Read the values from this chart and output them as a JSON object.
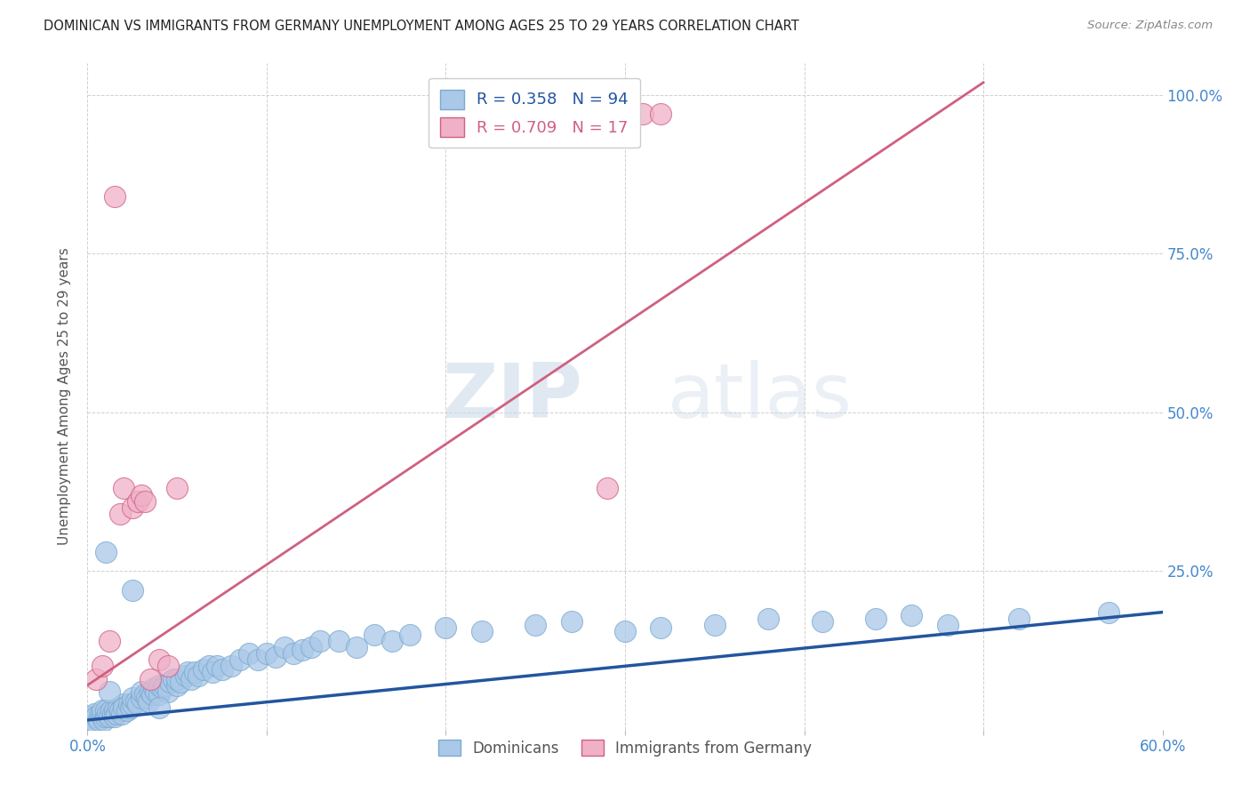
{
  "title": "DOMINICAN VS IMMIGRANTS FROM GERMANY UNEMPLOYMENT AMONG AGES 25 TO 29 YEARS CORRELATION CHART",
  "source": "Source: ZipAtlas.com",
  "ylabel": "Unemployment Among Ages 25 to 29 years",
  "x_ticks": [
    0.0,
    0.1,
    0.2,
    0.3,
    0.4,
    0.5,
    0.6
  ],
  "x_tick_labels": [
    "0.0%",
    "",
    "",
    "",
    "",
    "",
    "60.0%"
  ],
  "y_ticks": [
    0.0,
    0.25,
    0.5,
    0.75,
    1.0
  ],
  "y_tick_labels": [
    "",
    "25.0%",
    "50.0%",
    "75.0%",
    "100.0%"
  ],
  "blue_R": 0.358,
  "blue_N": 94,
  "pink_R": 0.709,
  "pink_N": 17,
  "blue_label": "Dominicans",
  "pink_label": "Immigrants from Germany",
  "watermark_zip": "ZIP",
  "watermark_atlas": "atlas",
  "background_color": "#ffffff",
  "blue_color": "#aac8e8",
  "blue_edge_color": "#7aaad0",
  "blue_line_color": "#2255a0",
  "pink_color": "#f0b0c8",
  "pink_edge_color": "#d06080",
  "pink_line_color": "#d06080",
  "blue_scatter_x": [
    0.002,
    0.003,
    0.004,
    0.005,
    0.005,
    0.006,
    0.007,
    0.008,
    0.008,
    0.009,
    0.01,
    0.01,
    0.011,
    0.012,
    0.013,
    0.014,
    0.015,
    0.015,
    0.016,
    0.017,
    0.018,
    0.019,
    0.02,
    0.02,
    0.022,
    0.023,
    0.024,
    0.025,
    0.025,
    0.027,
    0.028,
    0.03,
    0.03,
    0.032,
    0.033,
    0.034,
    0.035,
    0.036,
    0.037,
    0.038,
    0.04,
    0.04,
    0.042,
    0.043,
    0.045,
    0.046,
    0.048,
    0.05,
    0.05,
    0.052,
    0.055,
    0.056,
    0.058,
    0.06,
    0.062,
    0.065,
    0.068,
    0.07,
    0.072,
    0.075,
    0.08,
    0.085,
    0.09,
    0.095,
    0.1,
    0.105,
    0.11,
    0.115,
    0.12,
    0.125,
    0.13,
    0.14,
    0.15,
    0.16,
    0.17,
    0.18,
    0.2,
    0.22,
    0.25,
    0.27,
    0.3,
    0.32,
    0.35,
    0.38,
    0.41,
    0.44,
    0.46,
    0.48,
    0.52,
    0.57,
    0.01,
    0.012,
    0.025,
    0.04
  ],
  "blue_scatter_y": [
    0.02,
    0.015,
    0.025,
    0.01,
    0.02,
    0.015,
    0.025,
    0.02,
    0.03,
    0.015,
    0.02,
    0.03,
    0.025,
    0.02,
    0.03,
    0.025,
    0.03,
    0.02,
    0.025,
    0.035,
    0.03,
    0.025,
    0.04,
    0.035,
    0.03,
    0.04,
    0.035,
    0.04,
    0.05,
    0.045,
    0.04,
    0.05,
    0.06,
    0.055,
    0.05,
    0.045,
    0.06,
    0.055,
    0.065,
    0.06,
    0.055,
    0.07,
    0.065,
    0.07,
    0.06,
    0.075,
    0.08,
    0.07,
    0.08,
    0.075,
    0.085,
    0.09,
    0.08,
    0.09,
    0.085,
    0.095,
    0.1,
    0.09,
    0.1,
    0.095,
    0.1,
    0.11,
    0.12,
    0.11,
    0.12,
    0.115,
    0.13,
    0.12,
    0.125,
    0.13,
    0.14,
    0.14,
    0.13,
    0.15,
    0.14,
    0.15,
    0.16,
    0.155,
    0.165,
    0.17,
    0.155,
    0.16,
    0.165,
    0.175,
    0.17,
    0.175,
    0.18,
    0.165,
    0.175,
    0.185,
    0.28,
    0.06,
    0.22,
    0.035
  ],
  "pink_scatter_x": [
    0.005,
    0.008,
    0.012,
    0.015,
    0.018,
    0.02,
    0.025,
    0.028,
    0.03,
    0.032,
    0.035,
    0.04,
    0.045,
    0.05,
    0.29,
    0.31,
    0.32
  ],
  "pink_scatter_y": [
    0.08,
    0.1,
    0.14,
    0.84,
    0.34,
    0.38,
    0.35,
    0.36,
    0.37,
    0.36,
    0.08,
    0.11,
    0.1,
    0.38,
    0.38,
    0.97,
    0.97
  ],
  "blue_line_x0": 0.0,
  "blue_line_x1": 0.6,
  "blue_line_y0": 0.015,
  "blue_line_y1": 0.185,
  "pink_line_x0": 0.0,
  "pink_line_x1": 0.5,
  "pink_line_y0": 0.07,
  "pink_line_y1": 1.02
}
